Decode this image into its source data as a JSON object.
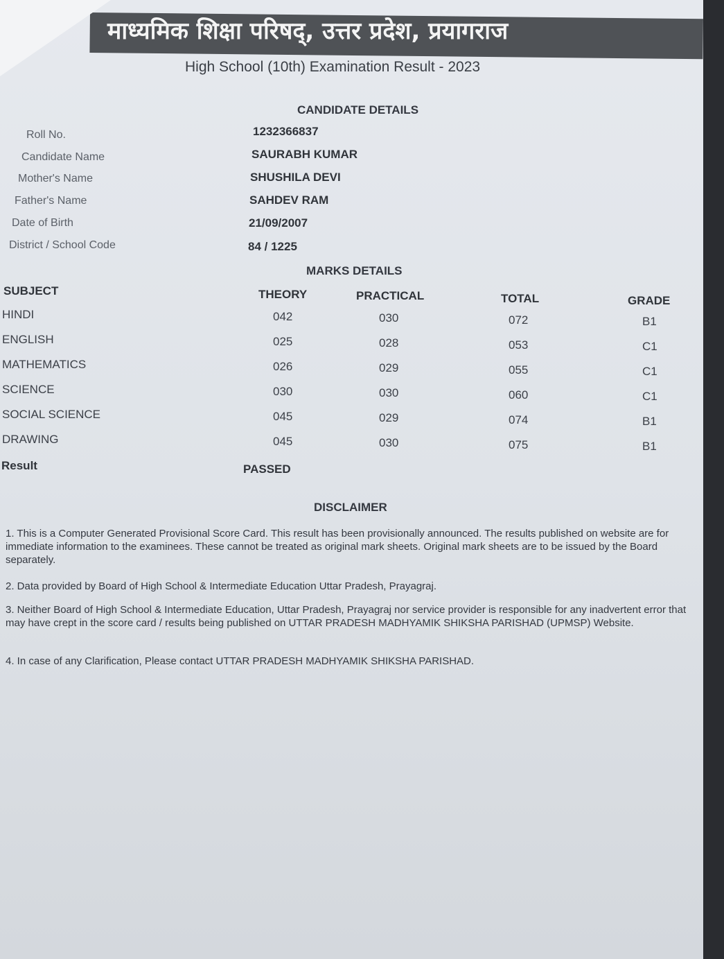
{
  "header": {
    "board_title_hindi": "माध्यमिक शिक्षा परिषद्, उत्तर प्रदेश, प्रयागराज",
    "exam_title": "High School (10th) Examination Result - 2023"
  },
  "candidate": {
    "section_title": "CANDIDATE DETAILS",
    "fields": [
      {
        "label": "Roll No.",
        "value": "1232366837"
      },
      {
        "label": "Candidate Name",
        "value": "SAURABH KUMAR"
      },
      {
        "label": "Mother's Name",
        "value": "SHUSHILA DEVI"
      },
      {
        "label": "Father's Name",
        "value": "SAHDEV RAM"
      },
      {
        "label": "Date of Birth",
        "value": "21/09/2007"
      },
      {
        "label": "District / School Code",
        "value": "84 / 1225"
      }
    ]
  },
  "marks": {
    "section_title": "MARKS DETAILS",
    "columns": [
      "SUBJECT",
      "THEORY",
      "PRACTICAL",
      "TOTAL",
      "GRADE"
    ],
    "rows": [
      [
        "HINDI",
        "042",
        "030",
        "072",
        "B1"
      ],
      [
        "ENGLISH",
        "025",
        "028",
        "053",
        "C1"
      ],
      [
        "MATHEMATICS",
        "026",
        "029",
        "055",
        "C1"
      ],
      [
        "SCIENCE",
        "030",
        "030",
        "060",
        "C1"
      ],
      [
        "SOCIAL SCIENCE",
        "045",
        "029",
        "074",
        "B1"
      ],
      [
        "DRAWING",
        "045",
        "030",
        "075",
        "B1"
      ]
    ],
    "result_label": "Result",
    "result_value": "PASSED"
  },
  "disclaimer": {
    "title": "DISCLAIMER",
    "items": [
      "1. This is a Computer Generated Provisional Score Card. This result has been provisionally announced. The results published on website are for immediate information to the examinees. These cannot be treated as original mark sheets. Original mark sheets are to be issued by the Board separately.",
      "2. Data provided by Board of High School & Intermediate Education Uttar Pradesh, Prayagraj.",
      "3. Neither Board of High School & Intermediate Education, Uttar Pradesh, Prayagraj nor service provider is responsible for any inadvertent error that may have crept in the score card / results being published on UTTAR PRADESH MADHYAMIK SHIKSHA PARISHAD (UPMSP) Website.",
      "4. In case of any Clarification, Please contact UTTAR PRADESH MADHYAMIK SHIKSHA PARISHAD."
    ]
  }
}
